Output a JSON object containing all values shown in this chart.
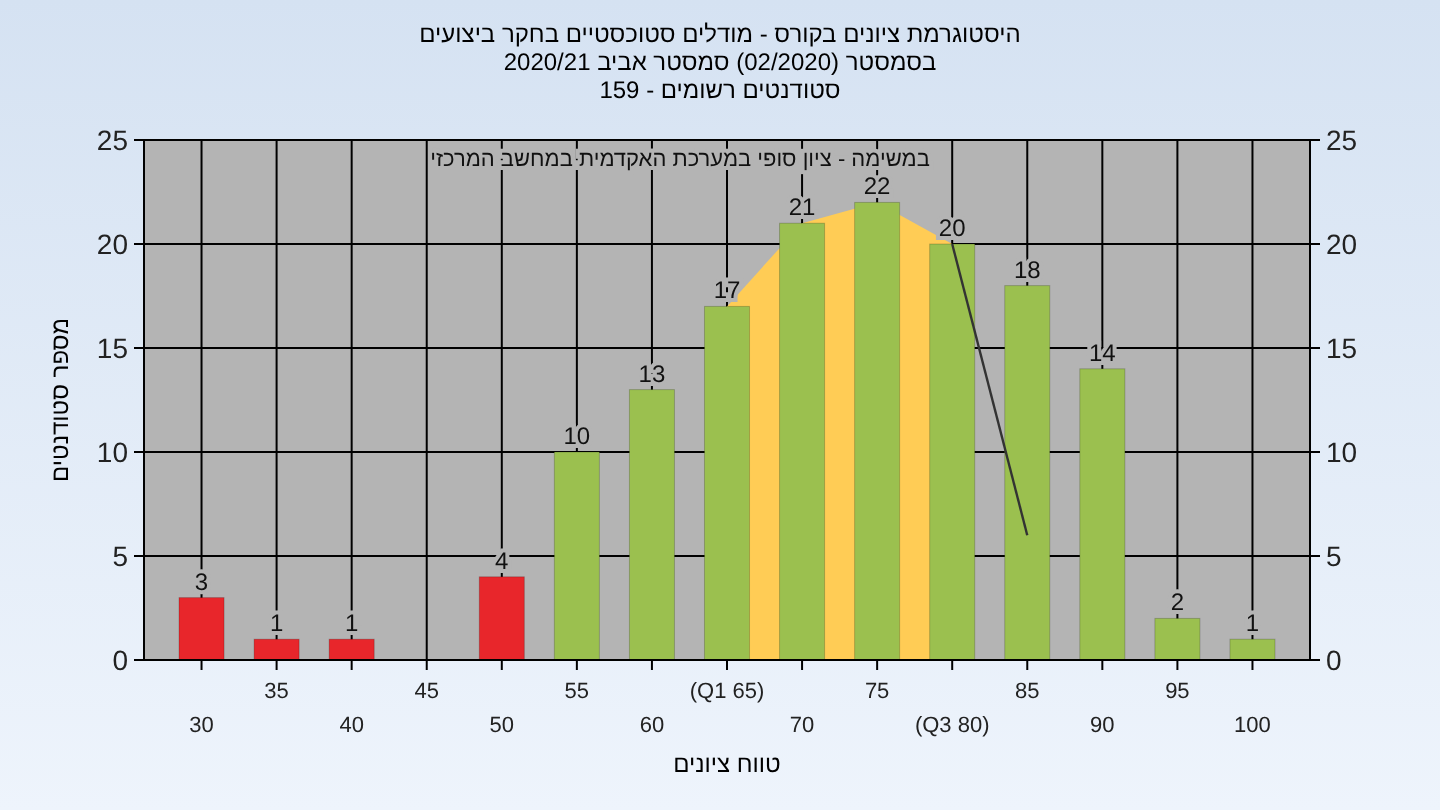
{
  "chart_data": {
    "type": "bar",
    "title": "היסטוגרמת ציונים בקורס - מודלים סטוכסטיים בחקר ביצועים",
    "subtitle": "בסמסטר (02/2020) סמסטר אביב 2020/21\nסטודנטים רשומים - 159",
    "xlabel": "טווח ציונים",
    "ylabel": "מספר סטודנטים",
    "annotations": [
      "במשימה - ציון סופי במערכת האקדמית במחשב המרכזי"
    ],
    "categories": [
      "30",
      "35",
      "40",
      "45",
      "50",
      "55",
      "60",
      "(Q1 65)",
      "70",
      "75",
      "(Q3 80)",
      "85",
      "90",
      "95",
      "100"
    ],
    "series": [
      {
        "type": "area",
        "color": "#ffcc55",
        "values": [
          null,
          null,
          null,
          null,
          null,
          null,
          null,
          17,
          21,
          22,
          20,
          null,
          null,
          null,
          null
        ]
      },
      {
        "values": [
          3,
          1,
          1,
          0,
          4,
          10,
          13,
          17,
          21,
          22,
          20,
          18,
          14,
          2,
          1
        ],
        "colors": [
          "#e8262b",
          "#e8262b",
          "#e8262b",
          "#e8262b",
          "#e8262b",
          "#9bc04f",
          "#9bc04f",
          "#9bc04f",
          "#9bc04f",
          "#9bc04f",
          "#9bc04f",
          "#9bc04f",
          "#9bc04f",
          "#9bc04f",
          "#9bc04f"
        ],
        "value_labels": [
          "3",
          "1",
          "1",
          null,
          "4",
          "10",
          "13",
          "17",
          "21",
          "22",
          "20",
          "18",
          "14",
          "2",
          "1"
        ]
      },
      {
        "type": "line",
        "color": "#333333",
        "values": [
          null,
          null,
          null,
          null,
          null,
          null,
          null,
          null,
          null,
          null,
          20,
          6,
          null,
          null,
          null
        ]
      }
    ],
    "ylim": [
      0,
      25
    ],
    "yticks": [
      0,
      5,
      10,
      15,
      20,
      25
    ],
    "y2lim": [
      0,
      25
    ],
    "y2ticks": [
      0,
      5,
      10,
      15,
      20,
      25
    ],
    "grid": true
  }
}
